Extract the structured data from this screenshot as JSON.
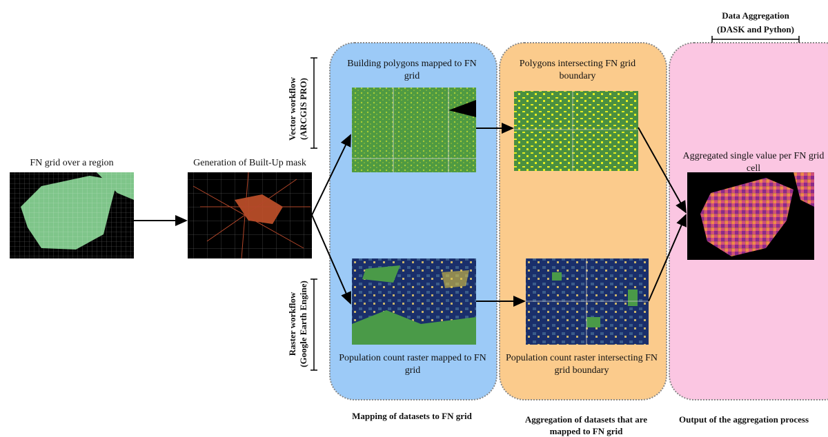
{
  "header": {
    "title": "Data Aggregation",
    "subtitle": "(DASK and Python)"
  },
  "workflows": [
    {
      "label": "Vector workflow",
      "tool": "(ARCGIS PRO)"
    },
    {
      "label": "Raster workflow",
      "tool": "(Google Earth Engine)"
    }
  ],
  "nodes": [
    {
      "label": "FN grid over a region"
    },
    {
      "label": "Generation of Built-Up mask"
    },
    {
      "label": "Building polygons mapped to FN grid"
    },
    {
      "label": "Polygons intersecting FN grid boundary"
    },
    {
      "label": "Aggregated single value per FN grid cell"
    },
    {
      "label": "Population count raster mapped to FN grid"
    },
    {
      "label": "Population count raster intersecting FN grid boundary"
    }
  ],
  "panels": [
    {
      "caption": "Mapping of datasets to FN grid"
    },
    {
      "caption": "Aggregation of datasets that are mapped to  FN grid"
    },
    {
      "caption": "Output of the aggregation process"
    }
  ]
}
